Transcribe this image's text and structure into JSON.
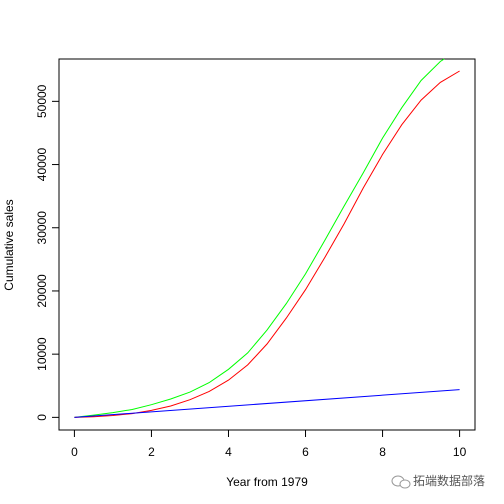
{
  "chart_data": {
    "type": "line",
    "title": "",
    "xlabel": "Year from 1979",
    "ylabel": "Cumulative sales",
    "xlim": [
      -0.4,
      10.4
    ],
    "ylim": [
      -2000,
      56700
    ],
    "xticks": [
      0,
      2,
      4,
      6,
      8,
      10
    ],
    "yticks": [
      0,
      10000,
      20000,
      30000,
      40000,
      50000
    ],
    "grid": false,
    "legend": "none",
    "series": [
      {
        "color": "#00ff00",
        "x": [
          0,
          0.5,
          1,
          1.5,
          2,
          2.5,
          3,
          3.5,
          4,
          4.5,
          5,
          5.5,
          6,
          6.5,
          7,
          7.5,
          8,
          8.5,
          9,
          9.5,
          9.6
        ],
        "y": [
          0,
          350,
          750,
          1250,
          2000,
          2900,
          4000,
          5500,
          7600,
          10200,
          13800,
          18000,
          22700,
          28000,
          33400,
          38700,
          44200,
          49000,
          53300,
          56300,
          56700
        ]
      },
      {
        "color": "#ff0000",
        "x": [
          0,
          0.5,
          1,
          1.5,
          2,
          2.5,
          3,
          3.5,
          4,
          4.5,
          5,
          5.5,
          6,
          6.5,
          7,
          7.5,
          8,
          8.5,
          9,
          9.5,
          10
        ],
        "y": [
          0,
          100,
          300,
          600,
          1100,
          1800,
          2800,
          4100,
          5900,
          8300,
          11600,
          15700,
          20200,
          25300,
          30600,
          36300,
          41600,
          46300,
          50200,
          53000,
          54800
        ]
      },
      {
        "color": "#0000ff",
        "x": [
          0,
          10
        ],
        "y": [
          0,
          4400
        ]
      }
    ]
  },
  "watermark": {
    "text": "拓端数据部落",
    "icon": "chat-bubble-icon"
  }
}
